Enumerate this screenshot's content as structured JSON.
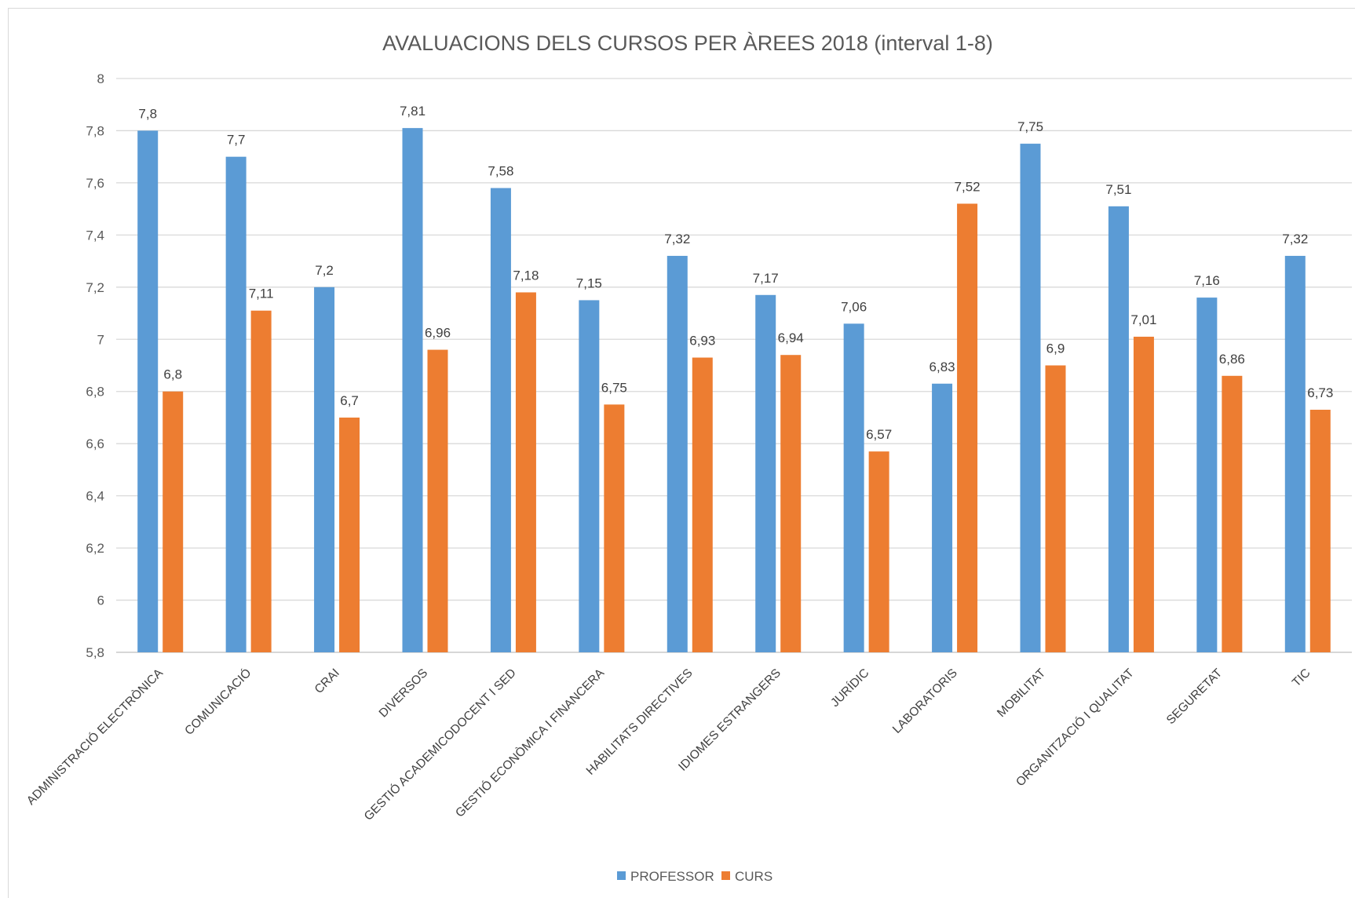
{
  "chart_data": {
    "type": "bar",
    "title": "AVALUACIONS DELS CURSOS PER ÀREES 2018 (interval 1-8)",
    "xlabel": "",
    "ylabel": "",
    "ylim": [
      5.8,
      8
    ],
    "yticks": [
      "5,8",
      "6",
      "6,2",
      "6,4",
      "6,6",
      "6,8",
      "7",
      "7,2",
      "7,4",
      "7,6",
      "7,8",
      "8"
    ],
    "ytick_values": [
      5.8,
      6,
      6.2,
      6.4,
      6.6,
      6.8,
      7,
      7.2,
      7.4,
      7.6,
      7.8,
      8
    ],
    "grid": true,
    "legend_position": "bottom",
    "categories": [
      "ADMINISTRACIÓ ELECTRÒNICA",
      "COMUNICACIÓ",
      "CRAI",
      "DIVERSOS",
      "GESTIÓ ACADEMICODOCENT I SED",
      "GESTIÓ ECONÒMICA I FINANCERA",
      "HABILITATS DIRECTIVES",
      "IDIOMES ESTRANGERS",
      "JURÍDIC",
      "LABORATORIS",
      "MOBILITAT",
      "ORGANITZACIÓ I QUALITAT",
      "SEGURETAT",
      "TIC"
    ],
    "series": [
      {
        "name": "PROFESSOR",
        "color": "#5b9bd5",
        "values": [
          7.8,
          7.7,
          7.2,
          7.81,
          7.58,
          7.15,
          7.32,
          7.17,
          7.06,
          6.83,
          7.75,
          7.51,
          7.16,
          7.32
        ],
        "labels": [
          "7,8",
          "7,7",
          "7,2",
          "7,81",
          "7,58",
          "7,15",
          "7,32",
          "7,17",
          "7,06",
          "6,83",
          "7,75",
          "7,51",
          "7,16",
          "7,32"
        ]
      },
      {
        "name": "CURS",
        "color": "#ed7d31",
        "values": [
          6.8,
          7.11,
          6.7,
          6.96,
          7.18,
          6.75,
          6.93,
          6.94,
          6.57,
          7.52,
          6.9,
          7.01,
          6.86,
          6.73
        ],
        "labels": [
          "6,8",
          "7,11",
          "6,7",
          "6,96",
          "7,18",
          "6,75",
          "6,93",
          "6,94",
          "6,57",
          "7,52",
          "6,9",
          "7,01",
          "6,86",
          "6,73"
        ]
      }
    ]
  }
}
